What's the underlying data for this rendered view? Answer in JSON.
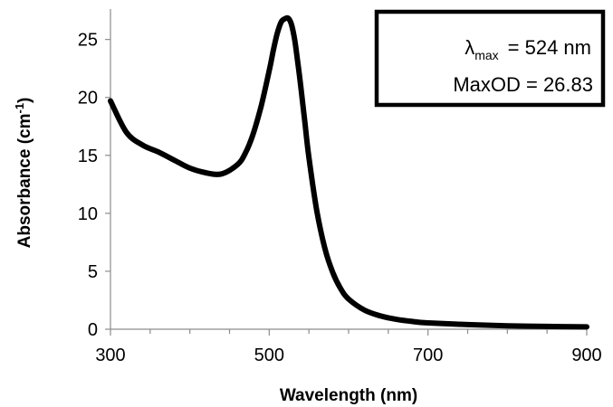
{
  "chart_data": {
    "type": "line",
    "title": "",
    "xlabel": "Wavelength (nm)",
    "ylabel_main": "Absorbance (cm",
    "ylabel_sup": "-1",
    "ylabel_end": ")",
    "xlim": [
      300,
      900
    ],
    "ylim": [
      0,
      27
    ],
    "xticks": [
      300,
      500,
      700,
      900
    ],
    "yticks": [
      0,
      5,
      10,
      15,
      20,
      25
    ],
    "x_minor_step": 50,
    "grid": false,
    "line_color": "#000000",
    "series": [
      {
        "x": [
          300,
          320,
          340,
          360,
          380,
          400,
          420,
          440,
          460,
          470,
          480,
          490,
          500,
          505,
          510,
          515,
          520,
          524,
          528,
          532,
          536,
          540,
          545,
          550,
          560,
          570,
          580,
          590,
          600,
          620,
          640,
          660,
          680,
          700,
          750,
          800,
          850,
          900
        ],
        "y": [
          19.7,
          17.0,
          15.9,
          15.3,
          14.6,
          13.9,
          13.5,
          13.4,
          14.2,
          15.2,
          16.9,
          19.3,
          22.3,
          24.0,
          25.5,
          26.5,
          26.8,
          26.83,
          26.3,
          25.0,
          23.0,
          20.8,
          17.8,
          14.8,
          10.2,
          7.0,
          4.9,
          3.5,
          2.6,
          1.65,
          1.15,
          0.85,
          0.67,
          0.55,
          0.4,
          0.3,
          0.24,
          0.2
        ]
      }
    ],
    "annotation": {
      "lambda_symbol": "λ",
      "lambda_sub": "max",
      "lambda_value": "= 524 nm",
      "maxod_text": "MaxOD = 26.83"
    }
  }
}
